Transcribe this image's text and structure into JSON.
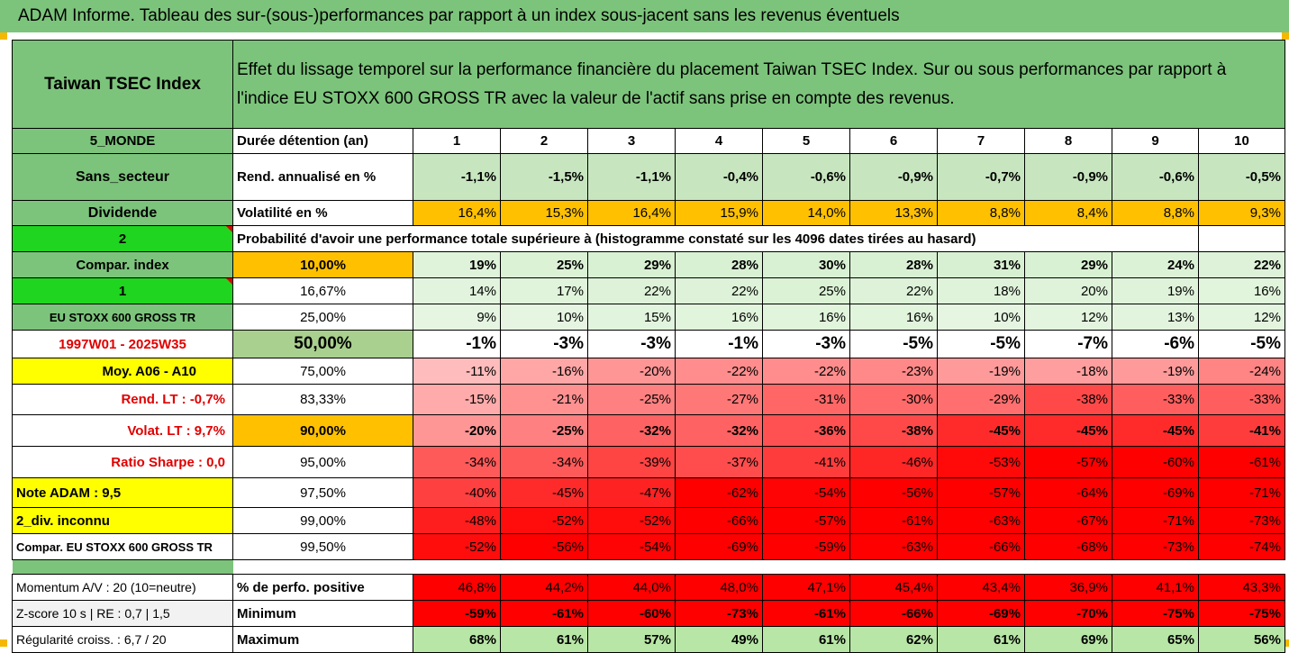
{
  "title": "ADAM Informe. Tableau des sur-(sous-)performances par rapport à un index sous-jacent sans les revenus éventuels",
  "header": {
    "index_name": "Taiwan TSEC Index",
    "description_line1": "Effet du lissage temporel sur la performance financière du placement Taiwan TSEC Index. Sur ou sous performances par rapport à",
    "description_line2": "l'indice EU STOXX 600 GROSS TR avec la valeur de l'actif sans prise en compte des revenus."
  },
  "left": {
    "zone": "5_MONDE",
    "sector": "Sans_secteur",
    "dividend": "Dividende",
    "code2": "2",
    "compar_index": "Compar. index",
    "code1": "1",
    "benchmark": "EU STOXX 600 GROSS TR",
    "period": "1997W01 - 2025W35",
    "moy": "Moy. A06 - A10",
    "rend_lt": "Rend. LT :   -0,7%",
    "volat_lt": "Volat. LT :   9,7%",
    "sharpe": "Ratio Sharpe :   0,0",
    "note": "Note ADAM : 9,5",
    "div": "2_div. inconnu",
    "compar_bench": "Compar. EU STOXX 600 GROSS TR",
    "momentum": "Momentum A/V : 20 (10=neutre)",
    "zscore": "Z-score 10 s  |  RE : 0,7  |  1,5",
    "regularite": "Régularité croiss. : 6,7 / 20"
  },
  "row_labels": {
    "duration": "Durée détention (an)",
    "rend": "Rend. annualisé en %",
    "vol": "Volatilité en %",
    "prob": "Probabilité d'avoir une performance totale supérieure à (histogramme constaté sur les 4096 dates tirées au hasard)",
    "positive": "% de perfo. positive",
    "minimum": "Minimum",
    "maximum": "Maximum"
  },
  "years": [
    "1",
    "2",
    "3",
    "4",
    "5",
    "6",
    "7",
    "8",
    "9",
    "10"
  ],
  "rend": [
    "-1,1%",
    "-1,5%",
    "-1,1%",
    "-0,4%",
    "-0,6%",
    "-0,9%",
    "-0,7%",
    "-0,9%",
    "-0,6%",
    "-0,5%"
  ],
  "vol": [
    "16,4%",
    "15,3%",
    "16,4%",
    "15,9%",
    "14,0%",
    "13,3%",
    "8,8%",
    "8,4%",
    "8,8%",
    "9,3%"
  ],
  "percentiles": [
    {
      "p": "10,00%",
      "vals": [
        "19%",
        "25%",
        "29%",
        "28%",
        "30%",
        "28%",
        "31%",
        "29%",
        "24%",
        "22%"
      ]
    },
    {
      "p": "16,67%",
      "vals": [
        "14%",
        "17%",
        "22%",
        "22%",
        "25%",
        "22%",
        "18%",
        "20%",
        "19%",
        "16%"
      ]
    },
    {
      "p": "25,00%",
      "vals": [
        "9%",
        "10%",
        "15%",
        "16%",
        "16%",
        "16%",
        "10%",
        "12%",
        "13%",
        "12%"
      ]
    },
    {
      "p": "50,00%",
      "vals": [
        "-1%",
        "-3%",
        "-3%",
        "-1%",
        "-3%",
        "-5%",
        "-5%",
        "-7%",
        "-6%",
        "-5%"
      ]
    },
    {
      "p": "75,00%",
      "vals": [
        "-11%",
        "-16%",
        "-20%",
        "-22%",
        "-22%",
        "-23%",
        "-19%",
        "-18%",
        "-19%",
        "-24%"
      ]
    },
    {
      "p": "83,33%",
      "vals": [
        "-15%",
        "-21%",
        "-25%",
        "-27%",
        "-31%",
        "-30%",
        "-29%",
        "-38%",
        "-33%",
        "-33%"
      ]
    },
    {
      "p": "90,00%",
      "vals": [
        "-20%",
        "-25%",
        "-32%",
        "-32%",
        "-36%",
        "-38%",
        "-45%",
        "-45%",
        "-45%",
        "-41%"
      ]
    },
    {
      "p": "95,00%",
      "vals": [
        "-34%",
        "-34%",
        "-39%",
        "-37%",
        "-41%",
        "-46%",
        "-53%",
        "-57%",
        "-60%",
        "-61%"
      ]
    },
    {
      "p": "97,50%",
      "vals": [
        "-40%",
        "-45%",
        "-47%",
        "-62%",
        "-54%",
        "-56%",
        "-57%",
        "-64%",
        "-69%",
        "-71%"
      ]
    },
    {
      "p": "99,00%",
      "vals": [
        "-48%",
        "-52%",
        "-52%",
        "-66%",
        "-57%",
        "-61%",
        "-63%",
        "-67%",
        "-71%",
        "-73%"
      ]
    },
    {
      "p": "99,50%",
      "vals": [
        "-52%",
        "-56%",
        "-54%",
        "-69%",
        "-59%",
        "-63%",
        "-66%",
        "-68%",
        "-73%",
        "-74%"
      ]
    }
  ],
  "positive": [
    "46,8%",
    "44,2%",
    "44,0%",
    "48,0%",
    "47,1%",
    "45,4%",
    "43,4%",
    "36,9%",
    "41,1%",
    "43,3%"
  ],
  "minimum": [
    "-59%",
    "-61%",
    "-60%",
    "-73%",
    "-61%",
    "-66%",
    "-69%",
    "-70%",
    "-75%",
    "-75%"
  ],
  "maximum": [
    "68%",
    "61%",
    "57%",
    "49%",
    "61%",
    "62%",
    "61%",
    "69%",
    "65%",
    "56%"
  ],
  "colors": {
    "header_green": "#7cc47b",
    "bright_green": "#1fd51f",
    "orange": "#ffc000",
    "yellow": "#ffff00",
    "light_green": "#e2f5df",
    "red": "#ff0000"
  }
}
